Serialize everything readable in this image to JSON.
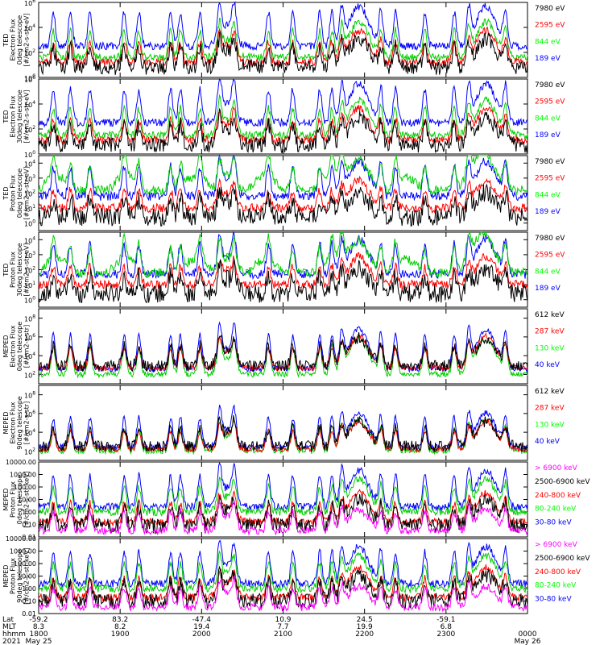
{
  "colors": {
    "blue": "#0000ff",
    "red": "#ff0000",
    "green": "#00d000",
    "black": "#000000",
    "magenta": "#ff00ff",
    "bright_green": "#00ff00"
  },
  "chart_data": [
    {
      "type": "line",
      "ylabel_lines": [
        "TED",
        "Electron Flux",
        "0deg telescope",
        "[#/cm2-s-str-eV]"
      ],
      "yticks": [
        "10^0",
        "10^2",
        "10^4",
        "10^6"
      ],
      "ylim_log10": [
        0,
        6
      ],
      "series": [
        {
          "name": "7980 eV",
          "color": "black"
        },
        {
          "name": "2595 eV",
          "color": "red"
        },
        {
          "name": "844 eV",
          "color": "green"
        },
        {
          "name": "189 eV",
          "color": "blue"
        }
      ],
      "baselines_log10": {
        "blue": 2.5,
        "green": 1.6,
        "red": 1.2,
        "black": 0.8
      },
      "peak_scale": 3.0
    },
    {
      "type": "line",
      "ylabel_lines": [
        "TED",
        "Electron Flux",
        "30deg telescope",
        "[#/cm2-s-str-eV]"
      ],
      "yticks": [
        "10^0",
        "10^2",
        "10^4",
        "10^6"
      ],
      "ylim_log10": [
        0,
        6
      ],
      "series": [
        {
          "name": "7980 eV",
          "color": "black"
        },
        {
          "name": "2595 eV",
          "color": "red"
        },
        {
          "name": "844 eV",
          "color": "green"
        },
        {
          "name": "189 eV",
          "color": "blue"
        }
      ],
      "baselines_log10": {
        "blue": 2.5,
        "green": 1.5,
        "red": 1.1,
        "black": 0.7
      },
      "peak_scale": 3.0
    },
    {
      "type": "line",
      "ylabel_lines": [
        "TED",
        "Proton Flux",
        "0deg telescope",
        "[#/cm2-s-str-eV]"
      ],
      "yticks": [
        "10^0",
        "10^1",
        "10^2",
        "10^3",
        "10^4"
      ],
      "ylim_log10": [
        -0.5,
        4.5
      ],
      "series": [
        {
          "name": "7980 eV",
          "color": "black"
        },
        {
          "name": "2595 eV",
          "color": "red"
        },
        {
          "name": "844 eV",
          "color": "green"
        },
        {
          "name": "189 eV",
          "color": "blue"
        }
      ],
      "baselines_log10": {
        "blue": 1.8,
        "green": 2.2,
        "red": 1.0,
        "black": 0.4
      },
      "peak_scale": 2.2
    },
    {
      "type": "line",
      "ylabel_lines": [
        "TED",
        "Proton Flux",
        "30deg telescope",
        "[#/cm2-s-str-eV]"
      ],
      "yticks": [
        "10^0",
        "10^1",
        "10^2",
        "10^3",
        "10^4"
      ],
      "ylim_log10": [
        -0.5,
        4.5
      ],
      "series": [
        {
          "name": "7980 eV",
          "color": "black"
        },
        {
          "name": "2595 eV",
          "color": "red"
        },
        {
          "name": "844 eV",
          "color": "green"
        },
        {
          "name": "189 eV",
          "color": "blue"
        }
      ],
      "baselines_log10": {
        "blue": 1.7,
        "green": 1.8,
        "red": 1.0,
        "black": 0.4
      },
      "peak_scale": 2.2
    },
    {
      "type": "line",
      "ylabel_lines": [
        "MEPED",
        "Electron Flux",
        "0deg telescope",
        "[#/cm2-s-str]"
      ],
      "yticks": [
        "10^2",
        "10^4",
        "10^6",
        "10^8"
      ],
      "ylim_log10": [
        1,
        9
      ],
      "series": [
        {
          "name": "612 keV",
          "color": "black"
        },
        {
          "name": "287 keV",
          "color": "red"
        },
        {
          "name": "130 keV",
          "color": "green"
        },
        {
          "name": "40 keV",
          "color": "blue"
        }
      ],
      "baselines_log10": {
        "blue": 2.6,
        "green": 2.0,
        "red": 2.7,
        "black": 2.9
      },
      "peak_scale": 4.0
    },
    {
      "type": "line",
      "ylabel_lines": [
        "MEPED",
        "Electron Flux",
        "90deg telescope",
        "[#/cm2-s-str]"
      ],
      "yticks": [
        "10^2",
        "10^4",
        "10^6",
        "10^8"
      ],
      "ylim_log10": [
        1,
        9
      ],
      "series": [
        {
          "name": "612 keV",
          "color": "black"
        },
        {
          "name": "287 keV",
          "color": "red"
        },
        {
          "name": "130 keV",
          "color": "green"
        },
        {
          "name": "40 keV",
          "color": "blue"
        }
      ],
      "baselines_log10": {
        "blue": 2.4,
        "green": 2.0,
        "red": 2.2,
        "black": 2.5
      },
      "peak_scale": 3.5
    },
    {
      "type": "line",
      "ylabel_lines": [
        "MEPED",
        "Proton Flux",
        "0deg telescope",
        "[#/cm2-s-str-keV]"
      ],
      "yticks": [
        "0.01",
        "0.10",
        "1.00",
        "10.00",
        "100.00",
        "1000.00",
        "10000.00"
      ],
      "ylim_log10": [
        -2,
        4
      ],
      "series": [
        {
          "name": "> 6900 keV",
          "color": "magenta"
        },
        {
          "name": "2500-6900 keV",
          "color": "black"
        },
        {
          "name": "240-800 keV",
          "color": "red"
        },
        {
          "name": "80-240 keV",
          "color": "green"
        },
        {
          "name": "30-80 keV",
          "color": "blue"
        }
      ],
      "baselines_log10": {
        "blue": 0.4,
        "green": 0.0,
        "red": -0.8,
        "black": -1.1,
        "magenta": -1.5
      },
      "peak_scale": 2.8
    },
    {
      "type": "line",
      "ylabel_lines": [
        "MEPED",
        "Proton Flux",
        "90deg telescope",
        "[#/cm2-s-str-keV]"
      ],
      "yticks": [
        "0.01",
        "0.10",
        "1.00",
        "10.00",
        "100.00",
        "1000.00",
        "10000.00"
      ],
      "ylim_log10": [
        -2,
        4
      ],
      "series": [
        {
          "name": "> 6900 keV",
          "color": "magenta"
        },
        {
          "name": "2500-6900 keV",
          "color": "black"
        },
        {
          "name": "240-800 keV",
          "color": "red"
        },
        {
          "name": "80-240 keV",
          "color": "green"
        },
        {
          "name": "30-80 keV",
          "color": "blue"
        }
      ],
      "baselines_log10": {
        "blue": 0.4,
        "green": 0.0,
        "red": -0.7,
        "black": -1.0,
        "magenta": -1.5
      },
      "peak_scale": 2.8
    }
  ],
  "time_axis": {
    "row_labels": [
      "Lat",
      "MLT",
      "hhmm",
      "2021"
    ],
    "ticks": [
      {
        "lat": "-59.2",
        "mlt": "8.3",
        "hhmm": "1800",
        "date": "May 25"
      },
      {
        "lat": "83.2",
        "mlt": "8.2",
        "hhmm": "1900",
        "date": ""
      },
      {
        "lat": "-47.4",
        "mlt": "19.4",
        "hhmm": "2000",
        "date": ""
      },
      {
        "lat": "10.9",
        "mlt": "7.7",
        "hhmm": "2100",
        "date": ""
      },
      {
        "lat": "24.5",
        "mlt": "19.9",
        "hhmm": "2200",
        "date": ""
      },
      {
        "lat": "-59.1",
        "mlt": "6.8",
        "hhmm": "2300",
        "date": ""
      },
      {
        "lat": "",
        "mlt": "",
        "hhmm": "0000",
        "date": "May 26"
      }
    ]
  }
}
